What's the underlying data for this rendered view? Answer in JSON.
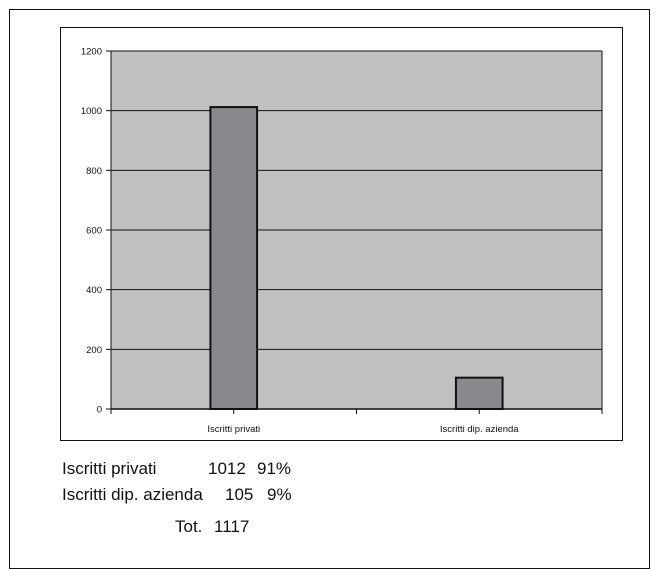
{
  "chart_data": {
    "type": "bar",
    "categories": [
      "Iscritti privati",
      "Iscritti dip. azienda"
    ],
    "values": [
      1012,
      105
    ],
    "ylim": [
      0,
      1200
    ],
    "yticks": [
      0,
      200,
      400,
      600,
      800,
      1000,
      1200
    ],
    "grid": true,
    "colors": {
      "plot_bg": "#c0c0c0",
      "bar_fill": "#8a8a8e",
      "bar_stroke": "#111111",
      "grid": "#111111"
    }
  },
  "summary": {
    "rows": [
      {
        "label": "Iscritti privati",
        "value": "1012",
        "percent": "91%"
      },
      {
        "label": "Iscritti dip. azienda",
        "value": "105",
        "percent": "9%"
      }
    ],
    "total_label": "Tot.",
    "total_value": "1117"
  }
}
